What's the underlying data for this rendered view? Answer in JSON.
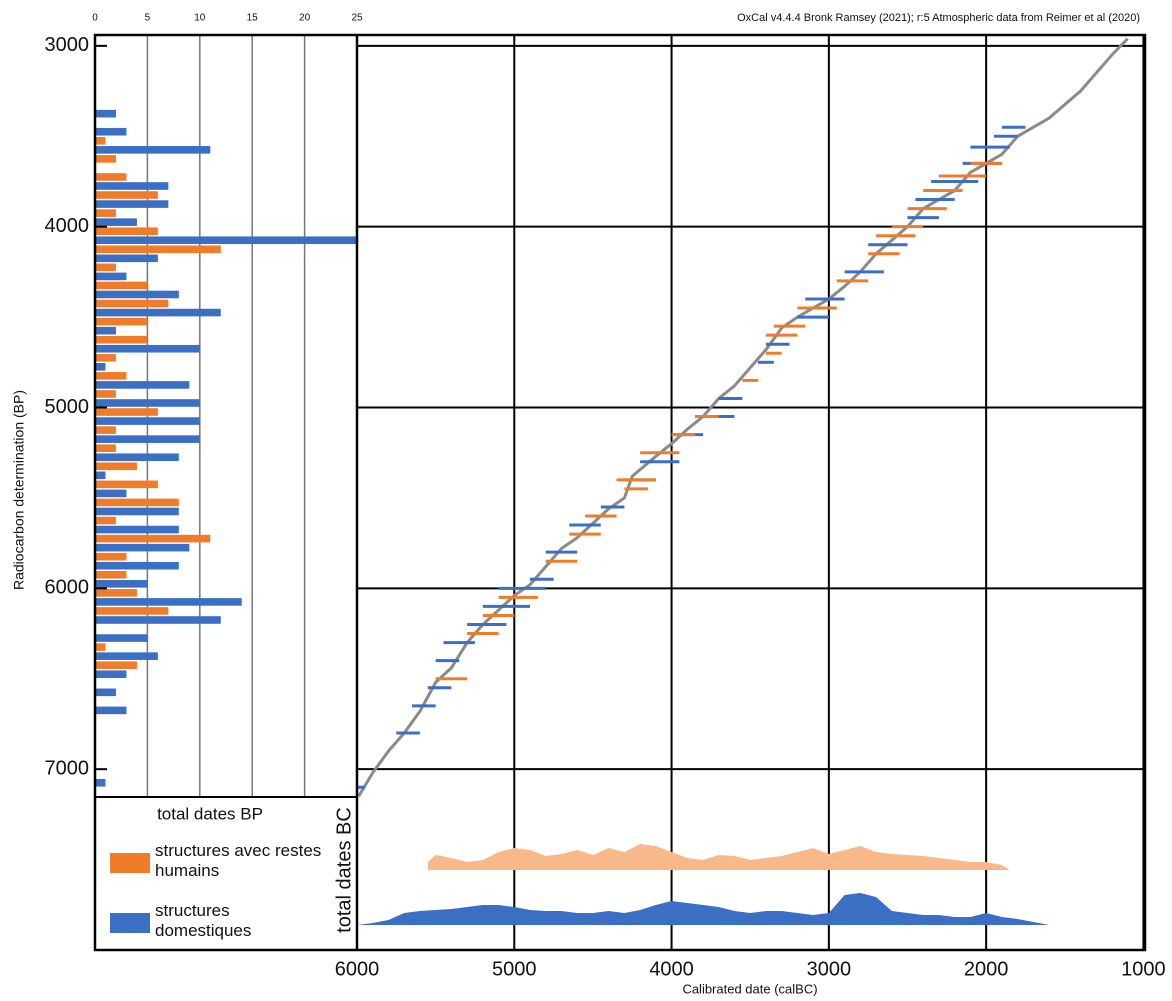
{
  "chart_data": [
    {
      "type": "bar",
      "orientation": "horizontal",
      "title": "total dates BP",
      "xlim": [
        0,
        25
      ],
      "xticks": [
        0,
        5,
        10,
        15,
        20,
        25
      ],
      "ylim": [
        2940,
        8000
      ],
      "series": [
        {
          "name": "structures avec restes humains",
          "color": "#f07c2a",
          "y": [
            3525,
            3625,
            3725,
            3825,
            3925,
            4025,
            4125,
            4225,
            4325,
            4425,
            4525,
            4625,
            4725,
            4825,
            4925,
            5025,
            5125,
            5225,
            5325,
            5425,
            5525,
            5625,
            5725,
            5825,
            5925,
            6025,
            6125,
            6325,
            6425
          ],
          "values": [
            1,
            2,
            3,
            6,
            2,
            6,
            12,
            2,
            5,
            7,
            5,
            5,
            2,
            3,
            2,
            6,
            2,
            2,
            4,
            6,
            8,
            2,
            11,
            3,
            3,
            4,
            7,
            1,
            4
          ]
        },
        {
          "name": "structures domestiques",
          "color": "#3a6fc4",
          "y": [
            3375,
            3475,
            3575,
            3775,
            3875,
            3975,
            4075,
            4175,
            4275,
            4375,
            4475,
            4575,
            4675,
            4775,
            4875,
            4975,
            5075,
            5175,
            5275,
            5375,
            5475,
            5575,
            5675,
            5775,
            5875,
            5975,
            6075,
            6175,
            6275,
            6375,
            6475,
            6575,
            6675,
            7075
          ],
          "values": [
            2,
            3,
            11,
            7,
            7,
            4,
            25,
            6,
            3,
            8,
            12,
            2,
            10,
            1,
            9,
            10,
            10,
            10,
            8,
            1,
            3,
            8,
            8,
            9,
            8,
            5,
            14,
            12,
            5,
            6,
            3,
            2,
            3,
            1
          ]
        }
      ]
    },
    {
      "type": "line",
      "annotation": "OxCal v4.4.4 Bronk Ramsey (2021); r:5 Atmospheric data from Reimer et al (2020)",
      "xlabel": "Calibrated date (calBC)",
      "ylabel": "Radiocarbon determination (BP)",
      "xlim": [
        6000,
        990
      ],
      "xticks": [
        6000,
        5000,
        4000,
        3000,
        2000,
        1000
      ],
      "ylim": [
        2940,
        8000
      ],
      "yticks": [
        3000,
        4000,
        5000,
        6000,
        7000
      ],
      "grid": true,
      "curve": {
        "color": "#8a8a8a",
        "x": [
          5990,
          5900,
          5800,
          5700,
          5600,
          5500,
          5400,
          5300,
          5200,
          5000,
          4900,
          4800,
          4700,
          4600,
          4500,
          4400,
          4300,
          4250,
          4100,
          4000,
          3900,
          3800,
          3700,
          3600,
          3500,
          3400,
          3300,
          3200,
          3100,
          3000,
          2900,
          2800,
          2700,
          2500,
          2400,
          2300,
          2200,
          2100,
          2000,
          1900,
          1800,
          1600,
          1400,
          1200,
          1100
        ],
        "values": [
          7150,
          7020,
          6900,
          6800,
          6680,
          6520,
          6440,
          6300,
          6200,
          6040,
          5980,
          5880,
          5780,
          5720,
          5640,
          5560,
          5500,
          5380,
          5270,
          5200,
          5120,
          5050,
          4950,
          4880,
          4780,
          4680,
          4560,
          4500,
          4450,
          4400,
          4330,
          4250,
          4150,
          4000,
          3900,
          3850,
          3800,
          3700,
          3650,
          3600,
          3500,
          3400,
          3250,
          3050,
          2960
        ]
      },
      "series": [
        {
          "color": "#3a6fc4",
          "ranges": [
            [
              3450,
              1900,
              1750
            ],
            [
              3500,
              1950,
              1800
            ],
            [
              3560,
              2100,
              1850
            ],
            [
              3650,
              2150,
              1900
            ],
            [
              3750,
              2350,
              2050
            ],
            [
              3850,
              2450,
              2200
            ],
            [
              3950,
              2500,
              2300
            ],
            [
              4100,
              2750,
              2500
            ],
            [
              4250,
              2900,
              2650
            ],
            [
              4400,
              3150,
              2900
            ],
            [
              4500,
              3200,
              3000
            ],
            [
              4650,
              3400,
              3250
            ],
            [
              4750,
              3450,
              3350
            ],
            [
              4950,
              3700,
              3550
            ],
            [
              5050,
              3850,
              3600
            ],
            [
              5150,
              4000,
              3800
            ],
            [
              5300,
              4200,
              3950
            ],
            [
              5400,
              4300,
              4100
            ],
            [
              5550,
              4450,
              4300
            ],
            [
              5650,
              4650,
              4450
            ],
            [
              5800,
              4800,
              4600
            ],
            [
              5950,
              4900,
              4750
            ],
            [
              6000,
              5100,
              4800
            ],
            [
              6100,
              5200,
              4900
            ],
            [
              6200,
              5300,
              5050
            ],
            [
              6300,
              5450,
              5250
            ],
            [
              6400,
              5500,
              5350
            ],
            [
              6550,
              5550,
              5400
            ],
            [
              6650,
              5650,
              5500
            ],
            [
              6800,
              5750,
              5600
            ],
            [
              7100,
              6000,
              5950
            ]
          ]
        },
        {
          "color": "#f07c2a",
          "ranges": [
            [
              3650,
              2100,
              1900
            ],
            [
              3720,
              2300,
              2000
            ],
            [
              3800,
              2400,
              2150
            ],
            [
              3900,
              2500,
              2250
            ],
            [
              4000,
              2600,
              2400
            ],
            [
              4050,
              2700,
              2450
            ],
            [
              4150,
              2750,
              2550
            ],
            [
              4300,
              2950,
              2750
            ],
            [
              4450,
              3200,
              2950
            ],
            [
              4550,
              3350,
              3150
            ],
            [
              4600,
              3400,
              3200
            ],
            [
              4700,
              3400,
              3300
            ],
            [
              4850,
              3550,
              3450
            ],
            [
              5050,
              3850,
              3700
            ],
            [
              5150,
              4000,
              3850
            ],
            [
              5250,
              4200,
              3950
            ],
            [
              5400,
              4350,
              4100
            ],
            [
              5450,
              4300,
              4150
            ],
            [
              5600,
              4550,
              4350
            ],
            [
              5700,
              4650,
              4450
            ],
            [
              5850,
              4800,
              4600
            ],
            [
              6050,
              5100,
              4850
            ],
            [
              6150,
              5200,
              5000
            ],
            [
              6250,
              5300,
              5100
            ],
            [
              6500,
              5500,
              5300
            ]
          ]
        }
      ]
    },
    {
      "type": "area",
      "ylabel": "total dates BC",
      "series": [
        {
          "color": "#f7b98a",
          "x": [
            5550,
            5500,
            5400,
            5300,
            5200,
            5100,
            5000,
            4900,
            4800,
            4700,
            4600,
            4500,
            4400,
            4300,
            4200,
            4100,
            4000,
            3900,
            3800,
            3700,
            3600,
            3500,
            3400,
            3300,
            3200,
            3100,
            3000,
            2900,
            2800,
            2700,
            2600,
            2500,
            2400,
            2300,
            2200,
            2100,
            2000,
            1900,
            1850
          ],
          "values": [
            8,
            15,
            12,
            8,
            10,
            18,
            22,
            20,
            14,
            16,
            20,
            15,
            22,
            18,
            26,
            24,
            18,
            12,
            10,
            15,
            14,
            10,
            12,
            14,
            18,
            22,
            16,
            20,
            24,
            18,
            16,
            15,
            14,
            12,
            10,
            8,
            8,
            5,
            0
          ]
        },
        {
          "color": "#3a6fc4",
          "x": [
            6000,
            5900,
            5800,
            5700,
            5600,
            5500,
            5400,
            5300,
            5200,
            5100,
            5000,
            4900,
            4800,
            4700,
            4600,
            4500,
            4400,
            4300,
            4200,
            4100,
            4000,
            3900,
            3800,
            3700,
            3600,
            3500,
            3400,
            3300,
            3200,
            3100,
            3000,
            2900,
            2800,
            2700,
            2600,
            2500,
            2400,
            2300,
            2200,
            2100,
            2000,
            1900,
            1800,
            1700,
            1600
          ],
          "values": [
            0,
            2,
            5,
            12,
            14,
            15,
            16,
            18,
            20,
            20,
            18,
            15,
            14,
            14,
            12,
            12,
            14,
            12,
            15,
            20,
            24,
            22,
            20,
            18,
            14,
            12,
            14,
            14,
            12,
            10,
            12,
            30,
            32,
            28,
            14,
            12,
            10,
            10,
            8,
            8,
            12,
            8,
            6,
            3,
            0
          ]
        }
      ]
    }
  ]
}
